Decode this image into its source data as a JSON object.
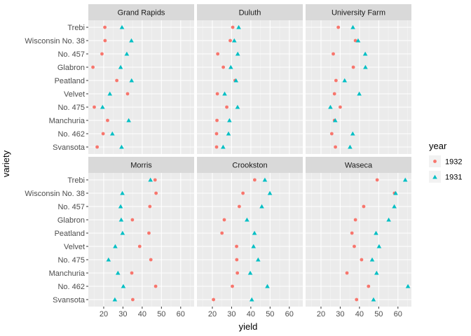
{
  "chart_data": {
    "type": "scatter",
    "xlabel": "yield",
    "ylabel": "variety",
    "xlim": [
      12,
      67
    ],
    "xticks": [
      20,
      30,
      40,
      50,
      60
    ],
    "varieties": [
      "Trebi",
      "Wisconsin No. 38",
      "No. 457",
      "Glabron",
      "Peatland",
      "Velvet",
      "No. 475",
      "Manchuria",
      "No. 462",
      "Svansota"
    ],
    "legend": {
      "title": "year",
      "position": "right",
      "entries": [
        {
          "label": "1932",
          "shape": "circle",
          "color": "#F8766D"
        },
        {
          "label": "1931",
          "shape": "triangle",
          "color": "#00BFC4"
        }
      ]
    },
    "grid": true,
    "panels": [
      {
        "site": "Grand Rapids",
        "y1932": [
          20.6,
          20.7,
          19.1,
          14.4,
          26.8,
          32.4,
          15.1,
          22.0,
          19.7,
          16.6
        ],
        "y1931": [
          29.5,
          34.4,
          32.0,
          28.8,
          34.5,
          23.2,
          19.4,
          33.0,
          24.5,
          29.3
        ]
      },
      {
        "site": "Duluth",
        "y1932": [
          30.6,
          29.3,
          22.8,
          25.7,
          31.8,
          22.6,
          27.5,
          22.4,
          22.2,
          22.2
        ],
        "y1931": [
          33.7,
          31.4,
          33.2,
          29.6,
          32.3,
          26.4,
          33.1,
          28.9,
          28.4,
          25.6
        ]
      },
      {
        "site": "University Farm",
        "y1932": [
          29.0,
          37.9,
          26.4,
          36.8,
          27.8,
          27.0,
          30.0,
          27.0,
          25.6,
          27.5
        ],
        "y1931": [
          36.6,
          39.3,
          43.0,
          43.1,
          32.3,
          39.9,
          24.9,
          27.4,
          36.5,
          35.1
        ]
      },
      {
        "site": "Morris",
        "y1932": [
          46.7,
          47.2,
          44.0,
          34.9,
          43.5,
          38.7,
          44.5,
          34.6,
          47.0,
          35.1
        ],
        "y1931": [
          44.3,
          29.7,
          28.8,
          29.1,
          29.8,
          26.0,
          22.5,
          27.4,
          30.2,
          25.8
        ]
      },
      {
        "site": "Crookston",
        "y1932": [
          42.0,
          35.9,
          34.0,
          26.2,
          25.0,
          32.6,
          32.7,
          33.0,
          30.4,
          20.6
        ],
        "y1931": [
          47.3,
          49.9,
          45.7,
          38.0,
          41.9,
          41.4,
          43.8,
          39.7,
          48.6,
          40.5
        ]
      },
      {
        "site": "Waseca",
        "y1932": [
          49.2,
          58.2,
          42.2,
          37.9,
          36.1,
          37.3,
          41.1,
          33.5,
          44.7,
          38.5
        ],
        "y1931": [
          63.8,
          58.8,
          58.1,
          55.2,
          48.6,
          50.2,
          46.6,
          48.9,
          65.2,
          47.3
        ]
      }
    ]
  }
}
